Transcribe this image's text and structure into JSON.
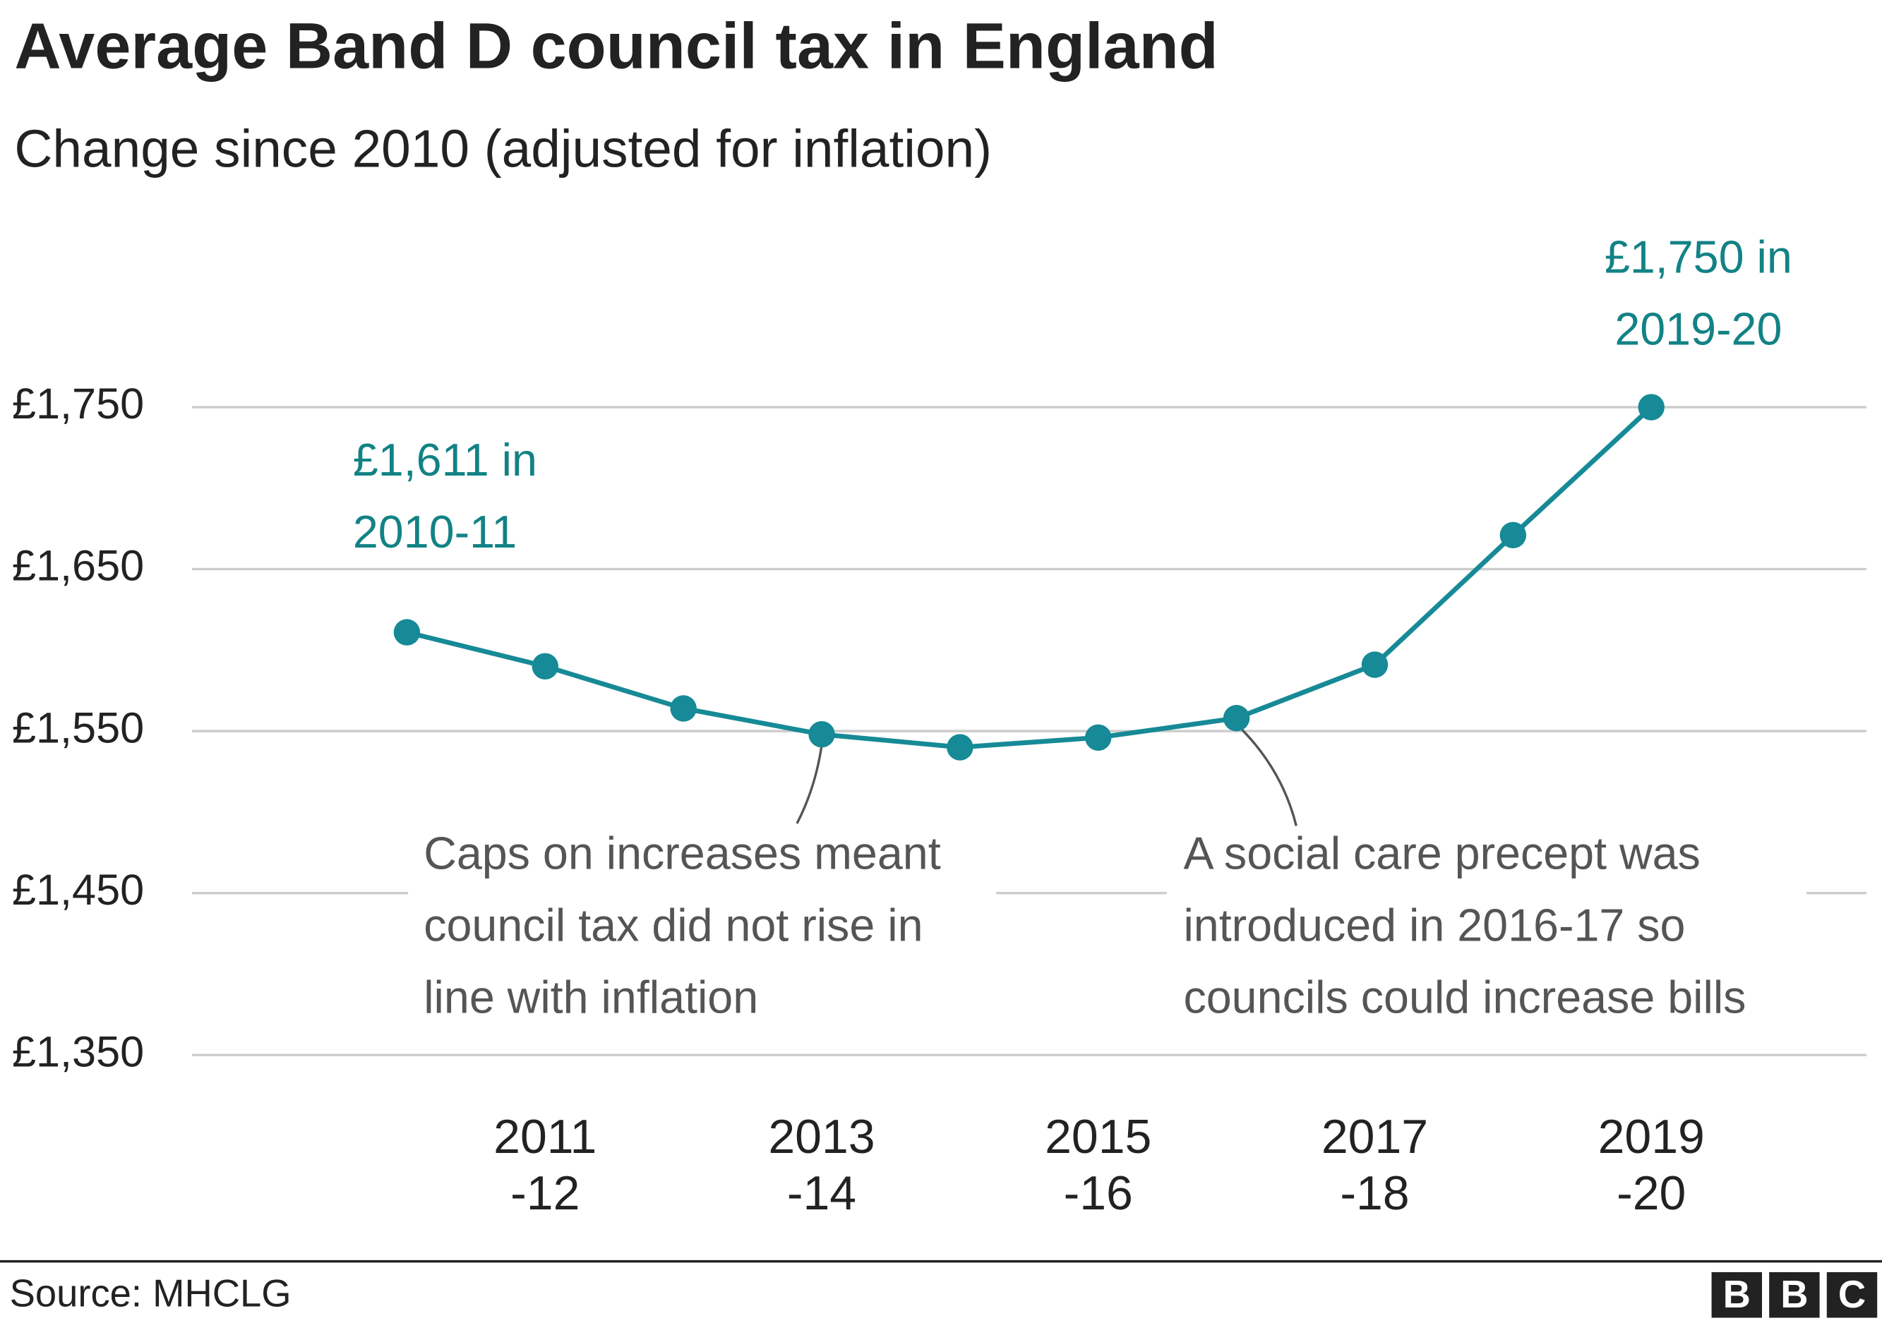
{
  "chart_data": {
    "type": "line",
    "title": "Average Band D council tax in England",
    "subtitle": "Change since 2010 (adjusted for inflation)",
    "categories": [
      null,
      "2011-12",
      null,
      "2013-14",
      null,
      "2015-16",
      null,
      "2017-18",
      null,
      "2019-20"
    ],
    "series": [
      {
        "name": "Average Band D council tax",
        "color": "#168a96",
        "values": [
          1611,
          1590,
          1564,
          1548,
          1540,
          1546,
          1558,
          1591,
          1671,
          1750
        ]
      }
    ],
    "ylim": [
      1350,
      1750
    ],
    "yticks": [
      {
        "value": 1350,
        "label": "£1,350"
      },
      {
        "value": 1450,
        "label": "£1,450"
      },
      {
        "value": 1550,
        "label": "£1,550"
      },
      {
        "value": 1650,
        "label": "£1,650"
      },
      {
        "value": 1750,
        "label": "£1,750"
      }
    ],
    "grid": true,
    "annotations": [
      {
        "lines": [
          "£1,611 in",
          "2010-11"
        ]
      },
      {
        "lines": [
          "£1,750 in",
          "2019-20"
        ]
      },
      {
        "lines": [
          "Caps on increases meant",
          "council tax did not rise in",
          "line with inflation"
        ]
      },
      {
        "lines": [
          "A social care precept was",
          "introduced in 2016-17 so",
          "councils could increase bills"
        ]
      }
    ],
    "source": "Source: MHCLG",
    "logo": [
      "B",
      "B",
      "C"
    ]
  }
}
